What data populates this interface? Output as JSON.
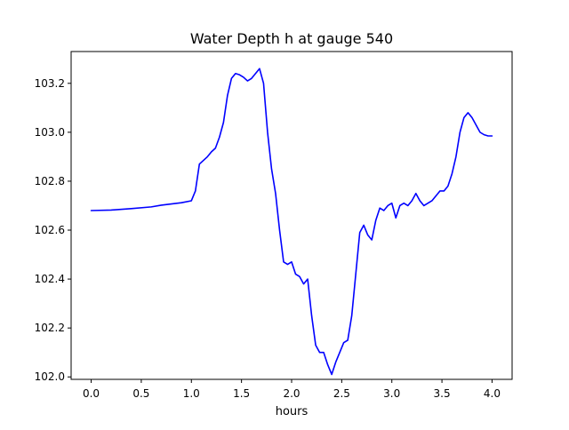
{
  "chart_data": {
    "type": "line",
    "title": "Water Depth h at gauge 540",
    "xlabel": "hours",
    "ylabel": "",
    "xlim": [
      -0.2,
      4.2
    ],
    "ylim": [
      101.99,
      103.33
    ],
    "xticks": [
      0.0,
      0.5,
      1.0,
      1.5,
      2.0,
      2.5,
      3.0,
      3.5,
      4.0
    ],
    "xtick_labels": [
      "0.0",
      "0.5",
      "1.0",
      "1.5",
      "2.0",
      "2.5",
      "3.0",
      "3.5",
      "4.0"
    ],
    "yticks": [
      102.0,
      102.2,
      102.4,
      102.6,
      102.8,
      103.0,
      103.2
    ],
    "ytick_labels": [
      "102.0",
      "102.2",
      "102.4",
      "102.6",
      "102.8",
      "103.0",
      "103.2"
    ],
    "grid": false,
    "series": [
      {
        "color": "#0000ff",
        "x": [
          0.0,
          0.2,
          0.4,
          0.6,
          0.7,
          0.9,
          1.0,
          1.04,
          1.08,
          1.12,
          1.16,
          1.2,
          1.24,
          1.28,
          1.32,
          1.36,
          1.4,
          1.44,
          1.48,
          1.52,
          1.56,
          1.6,
          1.64,
          1.68,
          1.72,
          1.76,
          1.8,
          1.84,
          1.88,
          1.92,
          1.96,
          2.0,
          2.04,
          2.08,
          2.12,
          2.16,
          2.2,
          2.24,
          2.28,
          2.32,
          2.36,
          2.4,
          2.44,
          2.48,
          2.52,
          2.56,
          2.6,
          2.64,
          2.68,
          2.72,
          2.76,
          2.8,
          2.84,
          2.88,
          2.92,
          2.96,
          3.0,
          3.04,
          3.08,
          3.12,
          3.16,
          3.2,
          3.24,
          3.28,
          3.32,
          3.36,
          3.4,
          3.44,
          3.48,
          3.52,
          3.56,
          3.6,
          3.64,
          3.68,
          3.72,
          3.76,
          3.8,
          3.84,
          3.88,
          3.92,
          3.96,
          4.0
        ],
        "y": [
          102.68,
          102.682,
          102.688,
          102.695,
          102.702,
          102.712,
          102.72,
          102.76,
          102.87,
          102.885,
          102.9,
          102.92,
          102.935,
          102.98,
          103.04,
          103.15,
          103.22,
          103.24,
          103.235,
          103.225,
          103.21,
          103.22,
          103.24,
          103.26,
          103.2,
          103.0,
          102.85,
          102.75,
          102.6,
          102.47,
          102.46,
          102.47,
          102.42,
          102.41,
          102.38,
          102.4,
          102.25,
          102.13,
          102.1,
          102.1,
          102.05,
          102.01,
          102.06,
          102.1,
          102.14,
          102.15,
          102.25,
          102.42,
          102.59,
          102.62,
          102.58,
          102.56,
          102.64,
          102.69,
          102.68,
          102.7,
          102.71,
          102.65,
          102.7,
          102.71,
          102.7,
          102.72,
          102.75,
          102.72,
          102.7,
          102.71,
          102.72,
          102.74,
          102.76,
          102.76,
          102.78,
          102.83,
          102.9,
          103.0,
          103.06,
          103.08,
          103.06,
          103.03,
          103.0,
          102.99,
          102.985,
          102.985
        ]
      }
    ]
  }
}
